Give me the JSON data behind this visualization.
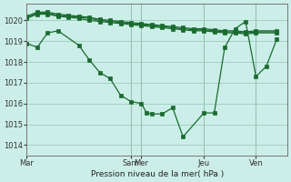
{
  "background_color": "#cceee8",
  "grid_color": "#99ccbb",
  "line_color": "#1a6b30",
  "marker_color": "#1a6b30",
  "xlabel": "Pression niveau de la mer( hPa )",
  "ylim": [
    1013.5,
    1020.8
  ],
  "yticks": [
    1014,
    1015,
    1016,
    1017,
    1018,
    1019,
    1020
  ],
  "day_labels": [
    "Mar",
    "Sam",
    "Mer",
    "Jeu",
    "Ven"
  ],
  "day_x": [
    0,
    10,
    11,
    17,
    22
  ],
  "xlim": [
    0,
    25
  ],
  "series1_x": [
    0,
    1,
    2,
    3,
    5,
    6,
    7,
    8,
    9,
    10,
    11,
    11.5,
    12,
    13,
    14,
    15,
    17,
    18,
    19,
    20,
    21,
    22,
    23,
    24
  ],
  "series1_y": [
    1018.9,
    1018.7,
    1019.4,
    1019.5,
    1018.8,
    1018.1,
    1017.5,
    1017.2,
    1016.4,
    1016.1,
    1016.0,
    1015.55,
    1015.5,
    1015.5,
    1015.8,
    1014.4,
    1015.55,
    1015.55,
    1018.7,
    1019.6,
    1019.95,
    1017.3,
    1017.8,
    1019.1
  ],
  "series2_x": [
    0,
    1,
    2,
    3,
    4,
    5,
    6,
    7,
    8,
    9,
    10,
    11,
    12,
    13,
    14,
    15,
    16,
    17,
    18,
    19,
    20,
    21,
    22,
    24
  ],
  "series2_y": [
    1020.1,
    1020.3,
    1020.3,
    1020.2,
    1020.15,
    1020.1,
    1020.0,
    1019.95,
    1019.9,
    1019.85,
    1019.8,
    1019.75,
    1019.7,
    1019.65,
    1019.6,
    1019.55,
    1019.5,
    1019.5,
    1019.45,
    1019.4,
    1019.4,
    1019.35,
    1019.4,
    1019.4
  ],
  "series3_x": [
    0,
    1,
    2,
    3,
    4,
    5,
    6,
    7,
    8,
    9,
    10,
    11,
    12,
    13,
    14,
    15,
    16,
    17,
    18,
    19,
    20,
    21,
    22,
    24
  ],
  "series3_y": [
    1020.15,
    1020.35,
    1020.35,
    1020.25,
    1020.2,
    1020.15,
    1020.1,
    1020.0,
    1019.95,
    1019.9,
    1019.85,
    1019.8,
    1019.75,
    1019.7,
    1019.65,
    1019.6,
    1019.55,
    1019.55,
    1019.5,
    1019.45,
    1019.45,
    1019.4,
    1019.45,
    1019.45
  ],
  "series4_x": [
    0,
    1,
    2,
    3,
    4,
    5,
    6,
    7,
    8,
    9,
    10,
    11,
    12,
    13,
    14,
    15,
    16,
    17,
    18,
    19,
    20,
    21,
    22,
    24
  ],
  "series4_y": [
    1020.2,
    1020.4,
    1020.4,
    1020.3,
    1020.25,
    1020.2,
    1020.15,
    1020.05,
    1020.0,
    1019.95,
    1019.9,
    1019.85,
    1019.8,
    1019.75,
    1019.7,
    1019.65,
    1019.6,
    1019.6,
    1019.55,
    1019.5,
    1019.5,
    1019.45,
    1019.5,
    1019.5
  ]
}
